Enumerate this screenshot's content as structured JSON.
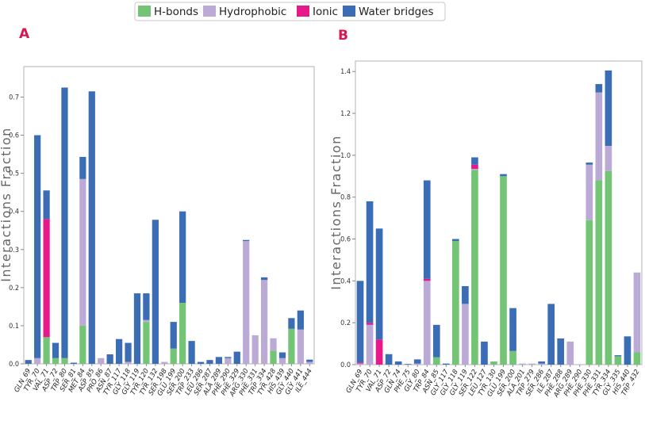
{
  "colors": {
    "H-bonds": "#74c476",
    "Hydrophobic": "#bcaad6",
    "Ionic": "#e7198a",
    "Water bridges": "#3a6db4"
  },
  "legend": [
    "H-bonds",
    "Hydrophobic",
    "Ionic",
    "Water bridges"
  ],
  "chart_data": [
    {
      "type": "bar",
      "stacked": true,
      "panel": "A",
      "ylabel": "Interactions Fraction",
      "ylim": [
        0,
        0.78
      ],
      "yticks": [
        0.0,
        0.1,
        0.2,
        0.3,
        0.4,
        0.5,
        0.6,
        0.7
      ],
      "grid": false,
      "categories": [
        "GLN_69",
        "TYR_70",
        "VAL_71",
        "ASP_72",
        "TRP_80",
        "SER_81",
        "MET_84",
        "ASP_85",
        "PRO_86",
        "ASN_87",
        "TYR_117",
        "GLY_118",
        "GLY_119",
        "TYR_120",
        "TYR_132",
        "SER_198",
        "GLU_199",
        "SER_200",
        "TRP_233",
        "LEU_286",
        "SER_287",
        "ALA_289",
        "PHE_290",
        "PHE_329",
        "ARG_330",
        "PHE_331",
        "TRP_334",
        "TYR_428",
        "HIS_439",
        "GLY_440",
        "GLY_441",
        "ILE_444"
      ],
      "series": [
        {
          "name": "H-bonds",
          "values": [
            0,
            0,
            0.07,
            0.015,
            0.015,
            0,
            0.1,
            0,
            0,
            0,
            0,
            0,
            0,
            0.11,
            0,
            0,
            0.04,
            0.16,
            0,
            0,
            0,
            0,
            0,
            0,
            0,
            0,
            0,
            0.035,
            0,
            0.092,
            0,
            0
          ]
        },
        {
          "name": "Hydrophobic",
          "values": [
            0,
            0.015,
            0,
            0,
            0,
            0,
            0.385,
            0,
            0.015,
            0,
            0,
            0.005,
            0,
            0.005,
            0,
            0.005,
            0,
            0,
            0,
            0,
            0,
            0,
            0.015,
            0,
            0.322,
            0.075,
            0.22,
            0.032,
            0.015,
            0,
            0.09,
            0.005
          ]
        },
        {
          "name": "Ionic",
          "values": [
            0,
            0,
            0.31,
            0,
            0,
            0,
            0,
            0,
            0,
            0,
            0,
            0,
            0,
            0,
            0,
            0,
            0,
            0,
            0,
            0,
            0,
            0,
            0,
            0,
            0,
            0,
            0,
            0,
            0,
            0,
            0,
            0
          ]
        },
        {
          "name": "Water bridges",
          "values": [
            0.01,
            0.585,
            0.075,
            0.04,
            0.71,
            0.003,
            0.058,
            0.715,
            0,
            0.025,
            0.065,
            0.05,
            0.185,
            0.07,
            0.378,
            0,
            0.07,
            0.24,
            0.06,
            0.005,
            0.01,
            0.018,
            0.003,
            0.032,
            0.003,
            0,
            0.007,
            0,
            0.015,
            0.028,
            0.05,
            0.006
          ]
        }
      ]
    },
    {
      "type": "bar",
      "stacked": true,
      "panel": "B",
      "ylabel": "Interactions Fraction",
      "ylim": [
        0,
        1.45
      ],
      "yticks": [
        0.0,
        0.2,
        0.4,
        0.6,
        0.8,
        1.0,
        1.2,
        1.4
      ],
      "grid": false,
      "categories": [
        "GLN_69",
        "TYR_70",
        "VAL_71",
        "ASP_72",
        "GLN_74",
        "PHE_75",
        "GLY_80",
        "TRP_84",
        "ASN_85",
        "GLY_117",
        "GLY_118",
        "GLY_119",
        "SER_122",
        "LEU_127",
        "TYR_130",
        "GLU_199",
        "SER_200",
        "ALA_201",
        "TRP_279",
        "SER_286",
        "ILE_287",
        "PHE_288",
        "ARG_289",
        "PHE_290",
        "PHE_330",
        "PHE_331",
        "TYR_334",
        "GLY_335",
        "HIS_440",
        "TRP_432"
      ],
      "series": [
        {
          "name": "H-bonds",
          "values": [
            0,
            0,
            0,
            0,
            0,
            0,
            0,
            0,
            0.035,
            0,
            0.59,
            0,
            0.93,
            0,
            0.015,
            0.9,
            0.065,
            0,
            0,
            0,
            0,
            0,
            0,
            0,
            0.69,
            0.88,
            0.925,
            0.04,
            0,
            0.06
          ]
        },
        {
          "name": "Hydrophobic",
          "values": [
            0.005,
            0.19,
            0,
            0,
            0,
            0,
            0.005,
            0.4,
            0,
            0,
            0,
            0.29,
            0.005,
            0,
            0,
            0,
            0,
            0.005,
            0.005,
            0.005,
            0,
            0,
            0.11,
            0,
            0.265,
            0.42,
            0.12,
            0,
            0,
            0.38
          ]
        },
        {
          "name": "Ionic",
          "values": [
            0.005,
            0.01,
            0.12,
            0,
            0,
            0,
            0,
            0.01,
            0,
            0,
            0,
            0,
            0.02,
            0,
            0,
            0,
            0,
            0,
            0,
            0,
            0,
            0,
            0,
            0,
            0,
            0,
            0,
            0,
            0,
            0
          ]
        },
        {
          "name": "Water bridges",
          "values": [
            0.39,
            0.58,
            0.53,
            0.05,
            0.015,
            0.003,
            0.02,
            0.47,
            0.155,
            0.005,
            0.01,
            0.085,
            0.035,
            0.11,
            0,
            0.01,
            0.205,
            0,
            0,
            0.01,
            0.29,
            0.125,
            0,
            0,
            0.01,
            0.04,
            0.36,
            0.005,
            0.135,
            0
          ]
        }
      ]
    }
  ]
}
